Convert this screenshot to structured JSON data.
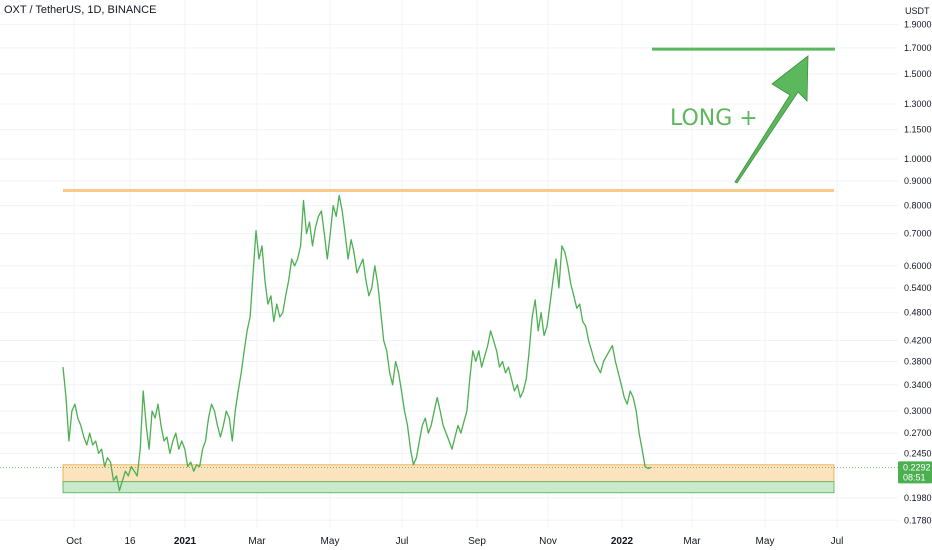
{
  "header": {
    "title": "OXT / TetherUS, 1D, BINANCE"
  },
  "price_axis": {
    "unit": "USDT",
    "ticks": [
      "1.9000",
      "1.7000",
      "1.5000",
      "1.3000",
      "1.1500",
      "1.0000",
      "0.9000",
      "0.8000",
      "0.7000",
      "0.6000",
      "0.5400",
      "0.4800",
      "0.4200",
      "0.3800",
      "0.3400",
      "0.3000",
      "0.2700",
      "0.2450",
      "0.1980",
      "0.1780"
    ],
    "current_price": "0.2292",
    "countdown": "08:51",
    "badge_color": "#4caf50"
  },
  "time_axis": {
    "labels": [
      {
        "text": "Oct",
        "year": false
      },
      {
        "text": "16",
        "year": false
      },
      {
        "text": "2021",
        "year": true
      },
      {
        "text": "Mar",
        "year": false
      },
      {
        "text": "May",
        "year": false
      },
      {
        "text": "Jul",
        "year": false
      },
      {
        "text": "Sep",
        "year": false
      },
      {
        "text": "Nov",
        "year": false
      },
      {
        "text": "2022",
        "year": true
      },
      {
        "text": "Mar",
        "year": false
      },
      {
        "text": "May",
        "year": false
      },
      {
        "text": "Jul",
        "year": false
      }
    ]
  },
  "annotation": {
    "text": "LONG +",
    "color": "#5cb85c"
  },
  "chart_data": {
    "type": "line",
    "scale": "log",
    "series_color": "#4caf50",
    "resistance_level": 0.86,
    "support_zone": {
      "top": 0.232,
      "bottom": 0.214,
      "color": "#fbe3bd"
    },
    "lower_zone": {
      "top": 0.214,
      "bottom": 0.203,
      "color": "#cbe9cc"
    },
    "target_level": 1.69,
    "series": [
      {
        "values": [
          0.37,
          0.32,
          0.26,
          0.3,
          0.31,
          0.29,
          0.28,
          0.265,
          0.255,
          0.27,
          0.255,
          0.26,
          0.245,
          0.25,
          0.23,
          0.24,
          0.235,
          0.215,
          0.22,
          0.205,
          0.215,
          0.225,
          0.22,
          0.23,
          0.225,
          0.22,
          0.25,
          0.33,
          0.28,
          0.25,
          0.3,
          0.29,
          0.31,
          0.28,
          0.26,
          0.265,
          0.245,
          0.26,
          0.27,
          0.25,
          0.26,
          0.25,
          0.23,
          0.235,
          0.225,
          0.232,
          0.23,
          0.25,
          0.26,
          0.29,
          0.31,
          0.3,
          0.28,
          0.265,
          0.28,
          0.3,
          0.29,
          0.26,
          0.3,
          0.33,
          0.36,
          0.4,
          0.44,
          0.47,
          0.58,
          0.71,
          0.62,
          0.66,
          0.56,
          0.5,
          0.52,
          0.46,
          0.5,
          0.47,
          0.48,
          0.52,
          0.56,
          0.62,
          0.6,
          0.62,
          0.66,
          0.82,
          0.7,
          0.74,
          0.66,
          0.72,
          0.76,
          0.78,
          0.7,
          0.62,
          0.7,
          0.8,
          0.76,
          0.84,
          0.78,
          0.7,
          0.62,
          0.68,
          0.64,
          0.58,
          0.6,
          0.62,
          0.56,
          0.52,
          0.54,
          0.6,
          0.55,
          0.48,
          0.42,
          0.4,
          0.36,
          0.34,
          0.38,
          0.36,
          0.33,
          0.3,
          0.28,
          0.25,
          0.232,
          0.24,
          0.26,
          0.28,
          0.29,
          0.27,
          0.28,
          0.3,
          0.32,
          0.3,
          0.28,
          0.27,
          0.26,
          0.25,
          0.265,
          0.28,
          0.27,
          0.285,
          0.3,
          0.35,
          0.4,
          0.38,
          0.4,
          0.37,
          0.39,
          0.41,
          0.44,
          0.42,
          0.4,
          0.37,
          0.38,
          0.36,
          0.37,
          0.35,
          0.33,
          0.34,
          0.32,
          0.33,
          0.35,
          0.4,
          0.47,
          0.51,
          0.44,
          0.48,
          0.43,
          0.45,
          0.5,
          0.56,
          0.62,
          0.54,
          0.66,
          0.64,
          0.6,
          0.55,
          0.52,
          0.49,
          0.5,
          0.46,
          0.45,
          0.42,
          0.4,
          0.38,
          0.37,
          0.36,
          0.38,
          0.39,
          0.4,
          0.41,
          0.38,
          0.36,
          0.34,
          0.32,
          0.31,
          0.33,
          0.32,
          0.3,
          0.27,
          0.25,
          0.23,
          0.228,
          0.2292
        ]
      }
    ]
  }
}
